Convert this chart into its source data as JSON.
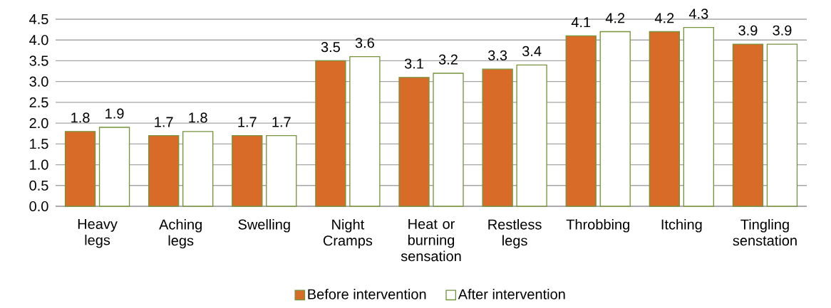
{
  "chart_data": {
    "type": "bar",
    "categories": [
      "Heavy legs",
      "Aching legs",
      "Swelling",
      "Night Cramps",
      "Heat or burning sensation",
      "Restless legs",
      "Throbbing",
      "Itching",
      "Tingling senstation"
    ],
    "series": [
      {
        "name": "Before intervention",
        "color": "#d86b27",
        "values": [
          1.8,
          1.7,
          1.7,
          3.5,
          3.1,
          3.3,
          4.1,
          4.2,
          3.9
        ]
      },
      {
        "name": "After intervention",
        "color": "#ffffff",
        "values": [
          1.9,
          1.8,
          1.7,
          3.6,
          3.2,
          3.4,
          4.2,
          4.3,
          3.9
        ]
      }
    ],
    "ylim": [
      0,
      4.5
    ],
    "yticks": [
      {
        "value": 0,
        "label": "0.0"
      },
      0.5,
      {
        "value": 1,
        "label": "1.0"
      },
      1.5,
      {
        "value": 2,
        "label": "2.0"
      },
      2.5,
      {
        "value": 3,
        "label": "3.0"
      },
      3.5,
      {
        "value": 4,
        "label": "4.0"
      },
      4.5
    ],
    "grid": "y",
    "legend": "bottom",
    "data_labels": true
  }
}
